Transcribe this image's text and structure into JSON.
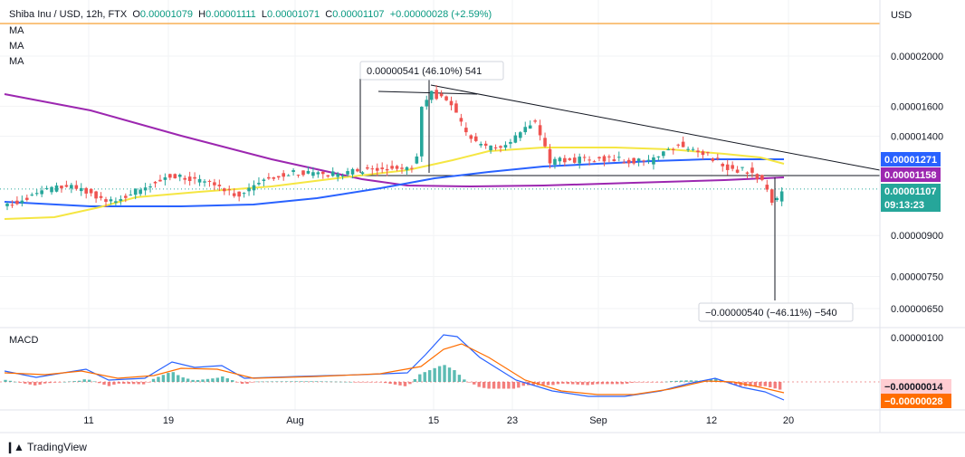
{
  "header": {
    "symbol": "Shiba Inu / USD, 12h, FTX",
    "open_label": "O",
    "open": "0.00001079",
    "high_label": "H",
    "high": "0.00001111",
    "low_label": "L",
    "low": "0.00001071",
    "close_label": "C",
    "close": "0.00001107",
    "change": "+0.00000028 (+2.59%)"
  },
  "ma_labels": [
    "MA",
    "MA",
    "MA"
  ],
  "currency": "USD",
  "macd_label": "MACD",
  "branding": "TradingView",
  "colors": {
    "up": "#26a69a",
    "down": "#ef5350",
    "ma_purple": "#9c27b0",
    "ma_blue": "#2962ff",
    "ma_yellow": "#f5e642",
    "macd_line": "#2962ff",
    "signal_line": "#ff6d00",
    "orange_line": "#f7a035"
  },
  "chart_data": [
    {
      "type": "candlestick",
      "title": "Shiba Inu / USD, 12h, FTX",
      "y_axis_ticks": [
        "0.00002000",
        "0.00001600",
        "0.00001400",
        "0.00000900",
        "0.00000750",
        "0.00000650"
      ],
      "x_axis_ticks": [
        "11",
        "19",
        "Aug",
        "15",
        "23",
        "Sep",
        "12",
        "20"
      ],
      "price_badges": [
        {
          "value": "0.00001271",
          "color": "#2962ff"
        },
        {
          "value": "0.00001158",
          "color": "#9c27b0"
        },
        {
          "value": "0.00001107",
          "color": "#26a69a"
        },
        {
          "value": "09:13:23",
          "color": "#26a69a"
        }
      ],
      "annotations": [
        {
          "text": "0.00000541 (46.10%) 541"
        },
        {
          "text": "−0.00000540 (−46.11%) −540"
        }
      ],
      "price_scale": "log",
      "last": {
        "open": 1.079e-05,
        "high": 1.111e-05,
        "low": 1.071e-05,
        "close": 1.107e-05
      }
    },
    {
      "type": "macd",
      "title": "MACD",
      "y_axis_ticks": [
        "0.00000100"
      ],
      "badges": [
        {
          "value": "−0.00000014",
          "color": "#ffcdd2",
          "text_color": "#131722"
        },
        {
          "value": "−0.00000028",
          "color": "#ff6d00",
          "text_color": "#ffffff"
        }
      ]
    }
  ]
}
